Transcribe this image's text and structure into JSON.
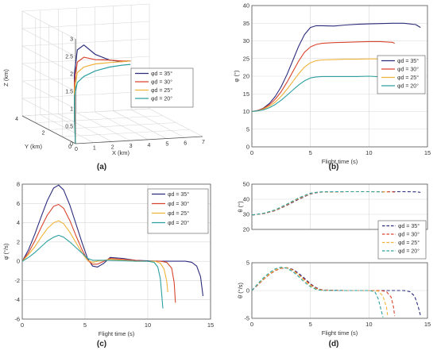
{
  "colors": {
    "s35": "#2c2c7c",
    "s30": "#d9452e",
    "s25": "#efb23a",
    "s20": "#2d9fa0",
    "grid": "#d7d7d7",
    "axis": "#555555",
    "text": "#333333"
  },
  "chart_data": [
    {
      "panel": "(a)",
      "type": "line3d",
      "xlabel": "X (km)",
      "ylabel": "Y (km)",
      "zlabel": "Z (km)",
      "xlim": [
        0,
        7
      ],
      "ylim": [
        0,
        4
      ],
      "zlim": [
        0,
        3
      ],
      "xticks": [
        "0",
        "1",
        "2",
        "3",
        "4",
        "5",
        "6",
        "7"
      ],
      "yticks": [
        "0",
        "2",
        "4"
      ],
      "zticks": [
        "0",
        "0.5",
        "1",
        "1.5",
        "2",
        "2.5",
        "3"
      ],
      "grid": true,
      "legend": {
        "position": "right",
        "entries": [
          "φd = 35°",
          "φd = 30°",
          "φd = 25°",
          "φd = 20°"
        ]
      },
      "series": [
        {
          "name": "φd = 35°",
          "x": [
            0,
            0.2,
            0.6,
            1.2,
            2,
            3,
            4,
            4.8,
            5.3
          ],
          "y": [
            0,
            0.35,
            0.9,
            1.5,
            2.1,
            2.6,
            2.9,
            3.05,
            3.1
          ],
          "z": [
            0,
            0.9,
            1.8,
            2.35,
            2.35,
            1.95,
            1.7,
            1.6,
            1.6
          ]
        },
        {
          "name": "φd = 30°",
          "x": [
            0,
            0.2,
            0.6,
            1.2,
            2,
            3,
            4,
            4.8,
            5.3
          ],
          "y": [
            0,
            0.35,
            0.9,
            1.5,
            2.1,
            2.6,
            2.9,
            3.05,
            3.1
          ],
          "z": [
            0,
            0.8,
            1.55,
            2.0,
            2.0,
            1.8,
            1.7,
            1.62,
            1.6
          ]
        },
        {
          "name": "φd = 25°",
          "x": [
            0,
            0.2,
            0.6,
            1.2,
            2,
            3,
            4,
            4.8,
            5.3
          ],
          "y": [
            0,
            0.35,
            0.9,
            1.5,
            2.1,
            2.6,
            2.9,
            3.05,
            3.1
          ],
          "z": [
            0,
            0.7,
            1.35,
            1.7,
            1.72,
            1.68,
            1.63,
            1.6,
            1.6
          ]
        },
        {
          "name": "φd = 20°",
          "x": [
            0,
            0.2,
            0.6,
            1.2,
            2,
            3,
            4,
            4.8,
            5.3
          ],
          "y": [
            0,
            0.35,
            0.9,
            1.5,
            2.1,
            2.6,
            2.9,
            3.05,
            3.1
          ],
          "z": [
            0,
            0.6,
            1.15,
            1.42,
            1.45,
            1.48,
            1.5,
            1.5,
            1.5
          ]
        }
      ]
    },
    {
      "panel": "(b)",
      "type": "line",
      "xlabel": "Flight time (s)",
      "ylabel": "φ (°)",
      "xlim": [
        0,
        15
      ],
      "ylim": [
        0,
        40
      ],
      "xticks": [
        0,
        5,
        10,
        15
      ],
      "yticks": [
        0,
        5,
        10,
        15,
        20,
        25,
        30,
        35,
        40
      ],
      "grid": true,
      "legend": {
        "position": "right",
        "entries": [
          "φd = 35°",
          "φd = 30°",
          "φd = 25°",
          "φd = 20°"
        ]
      },
      "series": [
        {
          "name": "φd = 35°",
          "x": [
            0,
            0.5,
            1,
            1.5,
            2,
            2.5,
            3,
            3.5,
            4,
            4.5,
            5,
            5.5,
            6,
            7,
            8,
            9,
            10,
            11,
            12,
            13,
            14,
            14.4
          ],
          "y": [
            10,
            10.3,
            11,
            12.3,
            14.3,
            17,
            20.5,
            24.5,
            28.5,
            31.8,
            33.8,
            34.3,
            34.3,
            34.2,
            34.5,
            34.7,
            34.8,
            34.9,
            35,
            35,
            34.6,
            33.8
          ]
        },
        {
          "name": "φd = 30°",
          "x": [
            0,
            0.5,
            1,
            1.5,
            2,
            2.5,
            3,
            3.5,
            4,
            4.5,
            5,
            5.5,
            6,
            7,
            8,
            9,
            10,
            11,
            12,
            12.2
          ],
          "y": [
            10,
            10.3,
            10.9,
            11.9,
            13.5,
            15.6,
            18.3,
            21.3,
            24.3,
            26.8,
            28.3,
            29,
            29.3,
            29.5,
            29.6,
            29.7,
            29.8,
            29.8,
            29.6,
            29.3
          ]
        },
        {
          "name": "φd = 25°",
          "x": [
            0,
            0.5,
            1,
            1.5,
            2,
            2.5,
            3,
            3.5,
            4,
            4.5,
            5,
            5.5,
            6,
            7,
            8,
            9,
            10,
            11,
            11.6
          ],
          "y": [
            10,
            10.2,
            10.7,
            11.5,
            12.7,
            14.3,
            16.3,
            18.5,
            20.7,
            22.6,
            23.8,
            24.4,
            24.6,
            24.7,
            24.8,
            24.8,
            24.9,
            24.9,
            24.7
          ]
        },
        {
          "name": "φd = 20°",
          "x": [
            0,
            0.5,
            1,
            1.5,
            2,
            2.5,
            3,
            3.5,
            4,
            4.5,
            5,
            5.5,
            6,
            7,
            8,
            9,
            10,
            11.2
          ],
          "y": [
            10,
            10.2,
            10.5,
            11.1,
            12,
            13.2,
            14.6,
            16.1,
            17.5,
            18.7,
            19.5,
            19.8,
            19.9,
            19.9,
            19.9,
            19.9,
            20,
            19.8
          ]
        }
      ]
    },
    {
      "panel": "(c)",
      "type": "line",
      "xlabel": "Flight time (s)",
      "ylabel": "φ̇ (°/s)",
      "xlim": [
        0,
        15
      ],
      "ylim": [
        -6,
        8
      ],
      "xticks": [
        0,
        5,
        10,
        15
      ],
      "yticks": [
        -6,
        -4,
        -2,
        0,
        2,
        4,
        6,
        8
      ],
      "grid": true,
      "legend": {
        "position": "top-right",
        "entries": [
          "φd = 35°",
          "φd = 30°",
          "φd = 25°",
          "φd = 20°"
        ]
      },
      "series": [
        {
          "name": "φd = 35°",
          "x": [
            0,
            0.5,
            1,
            1.5,
            2,
            2.5,
            2.9,
            3.3,
            3.8,
            4.3,
            4.8,
            5.2,
            5.6,
            6,
            6.5,
            7,
            8,
            9,
            10,
            11,
            12,
            13,
            13.5,
            13.9,
            14.2,
            14.4
          ],
          "y": [
            0,
            1.2,
            2.8,
            4.6,
            6.3,
            7.6,
            7.9,
            7.4,
            5.8,
            3.8,
            1.8,
            0.3,
            -0.5,
            -0.6,
            -0.2,
            0.4,
            0.3,
            0.1,
            0.05,
            0,
            0,
            0,
            -0.1,
            -0.5,
            -1.6,
            -3.6
          ]
        },
        {
          "name": "φd = 30°",
          "x": [
            0,
            0.5,
            1,
            1.5,
            2,
            2.5,
            2.9,
            3.3,
            3.8,
            4.3,
            4.8,
            5.2,
            5.6,
            6,
            6.5,
            7,
            8,
            9,
            10,
            11,
            11.5,
            11.9,
            12.1,
            12.2
          ],
          "y": [
            0,
            0.9,
            2.1,
            3.5,
            4.8,
            5.7,
            5.9,
            5.5,
            4.2,
            2.6,
            1.1,
            0.1,
            -0.3,
            -0.3,
            0,
            0.3,
            0.2,
            0.1,
            0,
            0,
            -0.1,
            -0.7,
            -2.2,
            -4.3
          ]
        },
        {
          "name": "φd = 25°",
          "x": [
            0,
            0.5,
            1,
            1.5,
            2,
            2.5,
            2.9,
            3.3,
            3.8,
            4.3,
            4.8,
            5.2,
            5.6,
            6,
            6.5,
            7,
            8,
            9,
            10,
            10.6,
            11,
            11.3,
            11.5,
            11.6
          ],
          "y": [
            0,
            0.7,
            1.5,
            2.5,
            3.4,
            4.0,
            4.2,
            3.9,
            3.0,
            1.9,
            0.8,
            0.1,
            -0.1,
            0,
            0.1,
            0.2,
            0.1,
            0,
            0,
            0,
            -0.2,
            -0.8,
            -2,
            -3.2
          ]
        },
        {
          "name": "φd = 20°",
          "x": [
            0,
            0.5,
            1,
            1.5,
            2,
            2.5,
            2.9,
            3.3,
            3.8,
            4.3,
            4.8,
            5.2,
            5.6,
            6,
            6.5,
            7,
            8,
            9,
            10,
            10.5,
            10.8,
            11,
            11.1,
            11.2
          ],
          "y": [
            0,
            0.4,
            0.9,
            1.5,
            2.1,
            2.5,
            2.7,
            2.5,
            2.0,
            1.4,
            0.8,
            0.3,
            0.1,
            0.1,
            0.1,
            0.1,
            0.05,
            0,
            0,
            -0.1,
            -0.6,
            -1.8,
            -3.3,
            -4.9
          ]
        }
      ]
    },
    {
      "panel": "(d) upper",
      "type": "line",
      "style": "dashed",
      "xlabel": "",
      "ylabel": "θ (°)",
      "xlim": [
        0,
        15
      ],
      "ylim": [
        20,
        50
      ],
      "xticks": [
        0,
        5,
        10,
        15
      ],
      "yticks": [
        20,
        30,
        40,
        50
      ],
      "grid": true,
      "legend": {
        "position": "bottom-right",
        "entries": [
          "φd = 35°",
          "φd = 30°",
          "φd = 25°",
          "φd = 20°"
        ]
      },
      "series": [
        {
          "name": "φd = 35°",
          "x": [
            0,
            1,
            2,
            3,
            4,
            5,
            5.5,
            6,
            7,
            8,
            9,
            10,
            11,
            12,
            13,
            14,
            14.4
          ],
          "y": [
            29.5,
            30.5,
            32.5,
            36,
            40,
            43.5,
            44.3,
            44.8,
            44.9,
            45,
            45,
            45,
            45,
            45,
            45,
            44.9,
            44.6
          ]
        },
        {
          "name": "φd = 30°",
          "x": [
            0,
            1,
            2,
            3,
            4,
            5,
            5.5,
            6,
            7,
            8,
            9,
            10,
            11,
            12,
            12.2
          ],
          "y": [
            29.5,
            30.5,
            32.6,
            36.2,
            40.3,
            43.7,
            44.4,
            44.8,
            44.9,
            45,
            45,
            45,
            45,
            44.9,
            44.7
          ]
        },
        {
          "name": "φd = 25°",
          "x": [
            0,
            1,
            2,
            3,
            4,
            5,
            5.5,
            6,
            7,
            8,
            9,
            10,
            11,
            11.6
          ],
          "y": [
            29.5,
            30.6,
            32.8,
            36.5,
            40.6,
            43.9,
            44.5,
            44.8,
            44.9,
            45,
            45,
            45,
            44.9,
            44.7
          ]
        },
        {
          "name": "φd = 20°",
          "x": [
            0,
            1,
            2,
            3,
            4,
            5,
            5.5,
            6,
            7,
            8,
            9,
            10,
            11,
            11.2
          ],
          "y": [
            29.5,
            30.7,
            33,
            36.8,
            40.9,
            44,
            44.6,
            44.9,
            45,
            45,
            45,
            45,
            44.9,
            44.7
          ]
        }
      ]
    },
    {
      "panel": "(d) lower",
      "type": "line",
      "style": "dashed",
      "xlabel": "Flight time (s)",
      "ylabel": "θ̇ (°/s)",
      "xlim": [
        0,
        15
      ],
      "ylim": [
        -5,
        5
      ],
      "xticks": [
        0,
        5,
        10,
        15
      ],
      "yticks": [
        -5,
        0,
        5
      ],
      "grid": true,
      "series": [
        {
          "name": "φd = 35°",
          "x": [
            0,
            0.5,
            1,
            1.5,
            2,
            2.5,
            3,
            3.5,
            4,
            4.5,
            5,
            5.5,
            6,
            7,
            8,
            9,
            10,
            11,
            12,
            13,
            13.5,
            13.9,
            14.2,
            14.4
          ],
          "y": [
            0,
            1,
            2,
            2.9,
            3.6,
            4.0,
            4.1,
            3.8,
            3.1,
            2.2,
            1.2,
            0.5,
            0.1,
            0.05,
            0,
            0,
            0,
            0,
            0,
            0,
            -0.2,
            -1,
            -2.8,
            -4.5
          ]
        },
        {
          "name": "φd = 30°",
          "x": [
            0,
            0.5,
            1,
            1.5,
            2,
            2.5,
            3,
            3.5,
            4,
            4.5,
            5,
            5.5,
            6,
            7,
            8,
            9,
            10,
            11,
            11.5,
            11.9,
            12.1,
            12.2
          ],
          "y": [
            0,
            1,
            2,
            2.9,
            3.6,
            4.0,
            4.1,
            3.7,
            2.9,
            2.0,
            1.1,
            0.4,
            0.1,
            0,
            0,
            0,
            0,
            0,
            -0.2,
            -1.2,
            -3,
            -4.6
          ]
        },
        {
          "name": "φd = 25°",
          "x": [
            0,
            0.5,
            1,
            1.5,
            2,
            2.5,
            3,
            3.5,
            4,
            4.5,
            5,
            5.5,
            6,
            7,
            8,
            9,
            10,
            10.8,
            11.2,
            11.5,
            11.6
          ],
          "y": [
            0,
            1.1,
            2.1,
            3.0,
            3.7,
            4.1,
            4.1,
            3.6,
            2.8,
            1.8,
            0.9,
            0.3,
            0.05,
            0,
            0,
            0,
            0,
            -0.1,
            -1,
            -3,
            -4.5
          ]
        },
        {
          "name": "φd = 20°",
          "x": [
            0,
            0.5,
            1,
            1.5,
            2,
            2.5,
            3,
            3.5,
            4,
            4.5,
            5,
            5.5,
            6,
            7,
            8,
            9,
            10,
            10.5,
            10.8,
            11,
            11.2
          ],
          "y": [
            0,
            1.2,
            2.3,
            3.2,
            3.9,
            4.2,
            4.0,
            3.4,
            2.5,
            1.5,
            0.7,
            0.2,
            0,
            0,
            0,
            0,
            0,
            -0.2,
            -1.5,
            -3.2,
            -4.8
          ]
        }
      ]
    }
  ],
  "captions": [
    "(a)",
    "(b)",
    "(c)",
    "(d)"
  ]
}
